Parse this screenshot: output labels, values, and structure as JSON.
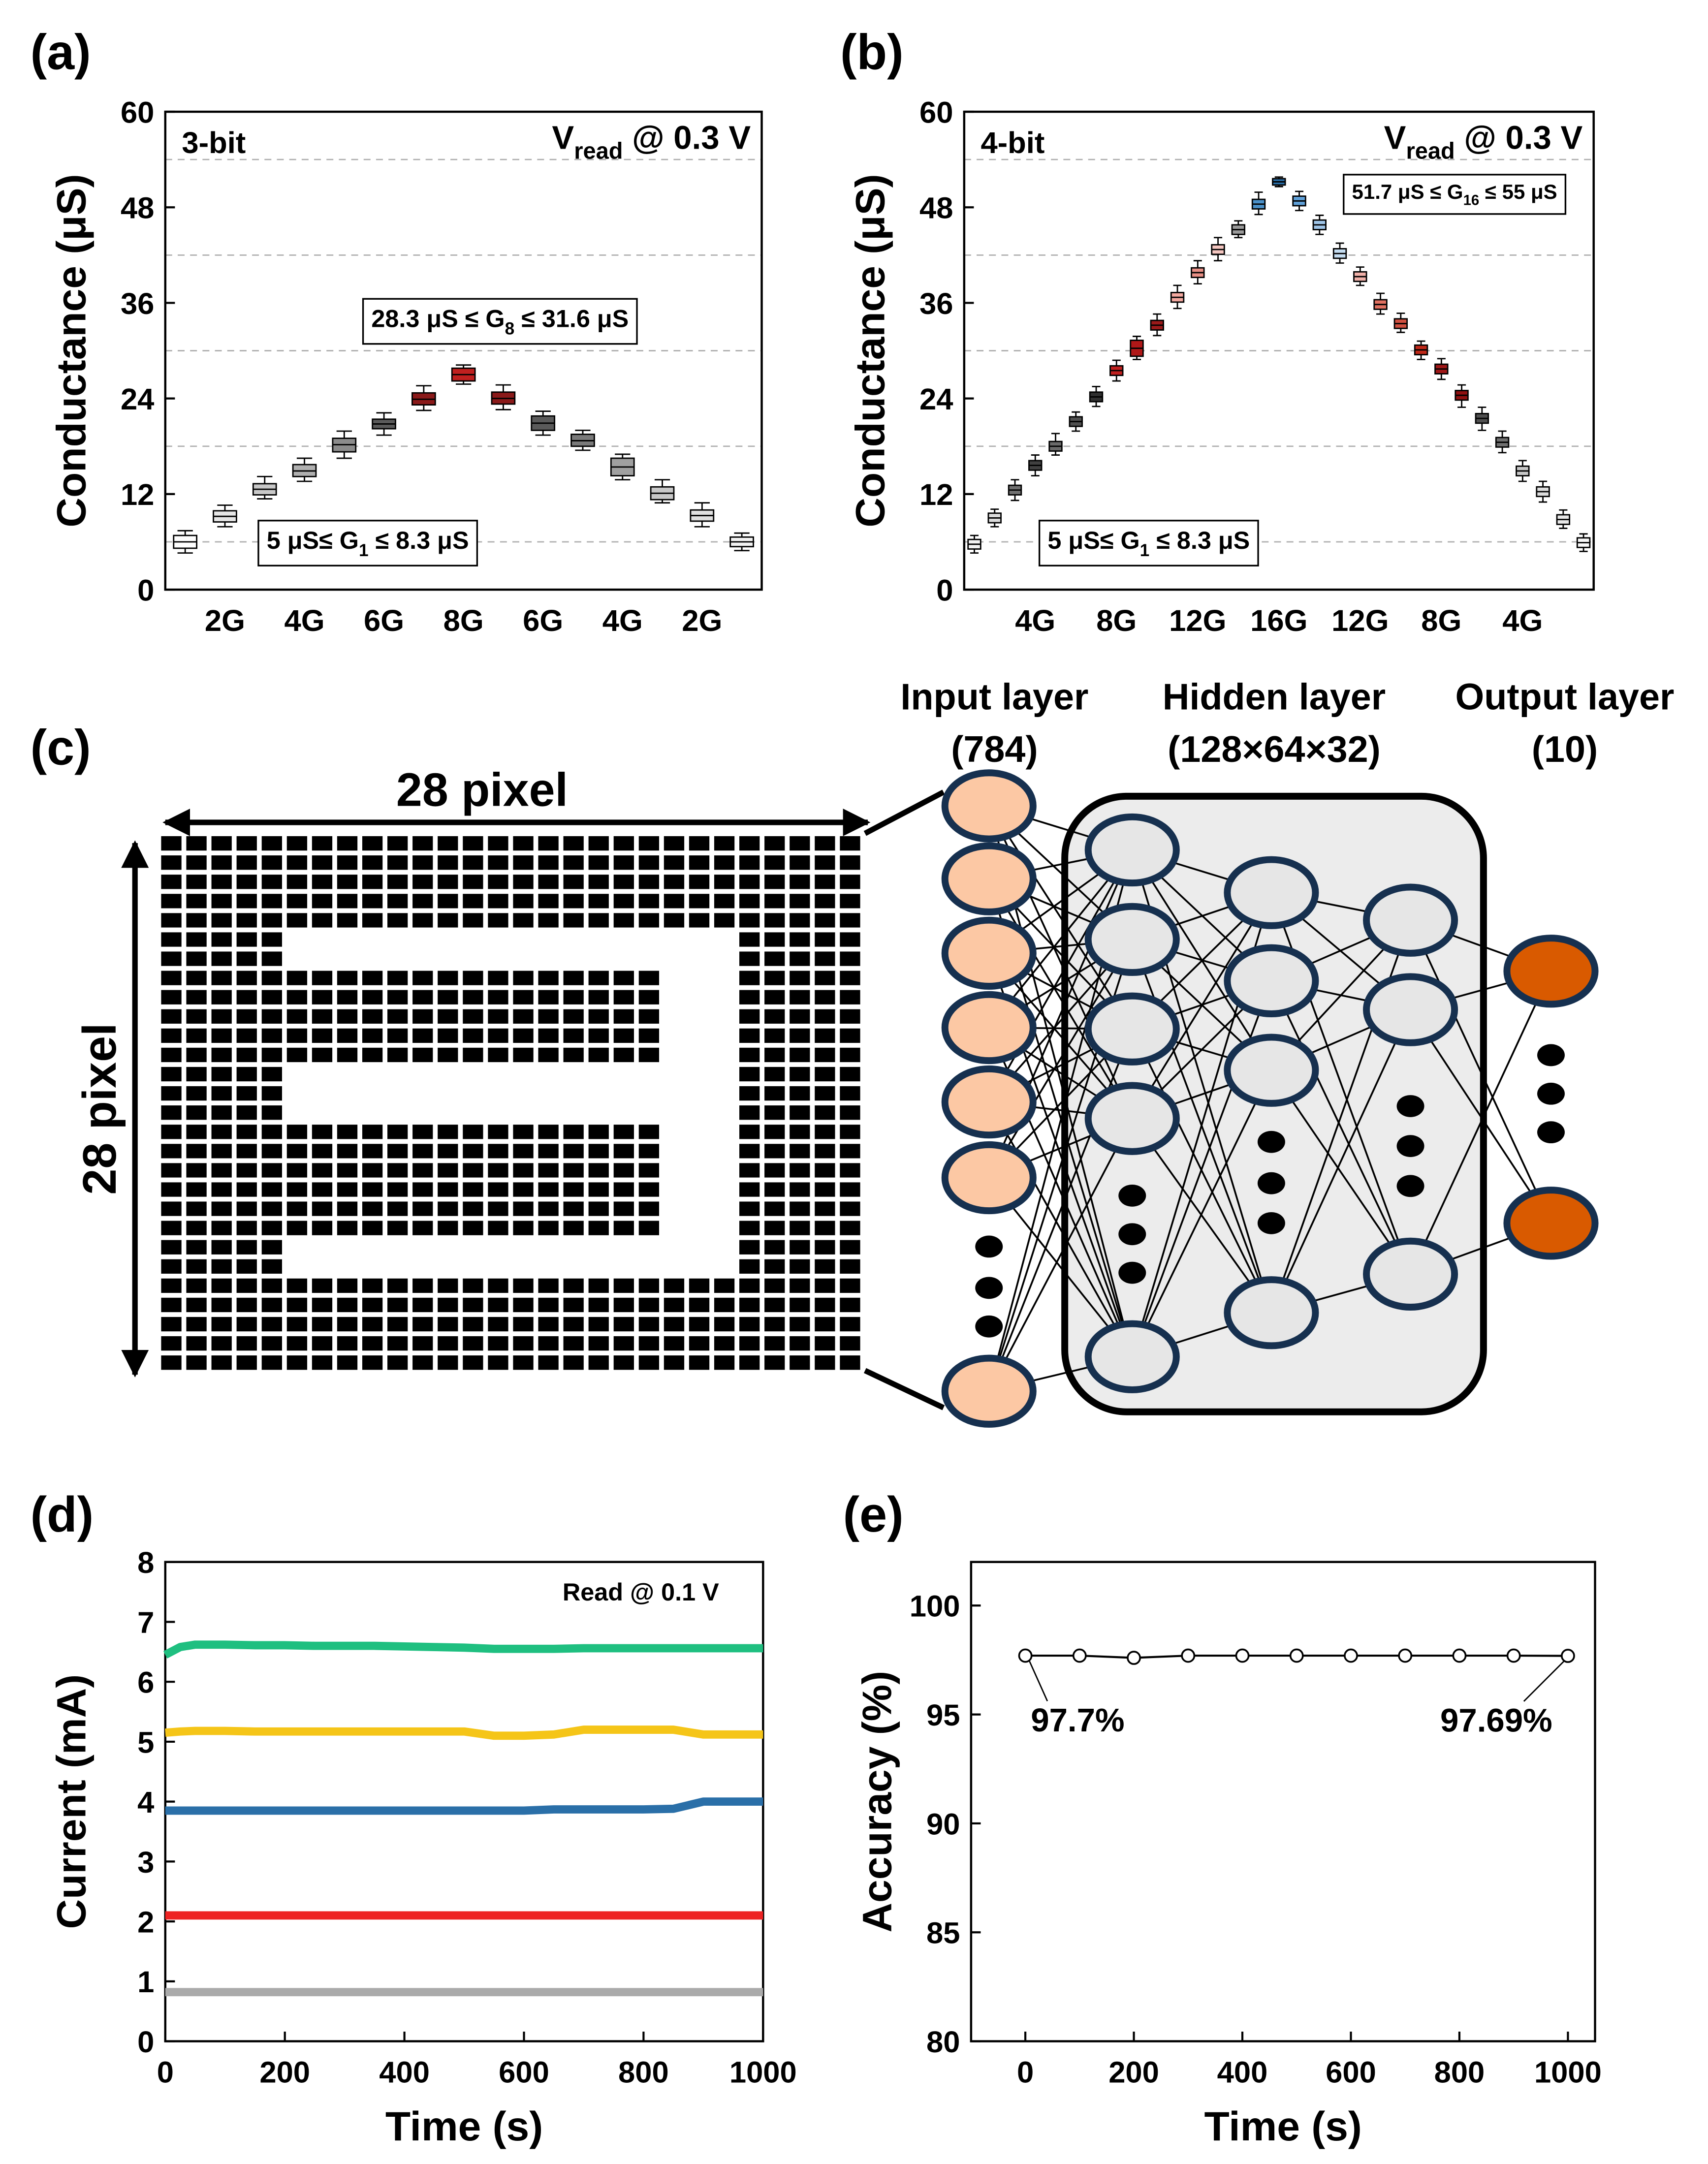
{
  "chart_data": [
    {
      "panel_label": "(a)",
      "type": "box",
      "ylabel": "Conductance (μS)",
      "bit_label": "3-bit",
      "vread": [
        "V",
        "read",
        " @ 0.3 V"
      ],
      "range_high": [
        "28.3 μS ≤ G",
        "8",
        " ≤ 31.6 μS"
      ],
      "range_low": [
        "5 μS≤ G",
        "1",
        " ≤ 8.3 μS"
      ],
      "categories": [
        null,
        "2G",
        null,
        "4G",
        null,
        "6G",
        null,
        "8G",
        null,
        "6G",
        null,
        "4G",
        null,
        "2G",
        null
      ],
      "median": [
        6.0,
        9.2,
        12.6,
        14.9,
        18.2,
        20.8,
        23.9,
        27.0,
        24.0,
        20.9,
        18.7,
        15.4,
        12.1,
        9.3,
        6.0
      ],
      "q1": [
        5.2,
        8.5,
        11.9,
        14.2,
        17.3,
        20.2,
        23.2,
        26.2,
        23.3,
        20.0,
        18.0,
        14.3,
        11.3,
        8.6,
        5.4
      ],
      "q3": [
        6.8,
        9.9,
        13.3,
        15.7,
        19.0,
        21.4,
        24.7,
        27.8,
        24.8,
        21.8,
        19.5,
        16.5,
        12.9,
        10.0,
        6.6
      ],
      "min": [
        4.6,
        7.9,
        11.4,
        13.6,
        16.5,
        19.4,
        22.5,
        25.8,
        22.6,
        19.4,
        17.5,
        13.8,
        10.9,
        7.9,
        4.9
      ],
      "max": [
        7.4,
        10.6,
        14.2,
        16.5,
        19.9,
        22.2,
        25.6,
        28.2,
        25.7,
        22.4,
        20.0,
        17.0,
        13.8,
        10.9,
        7.1
      ],
      "colors": [
        "#ffffff",
        "#e6e6e6",
        "#c8c8c8",
        "#b0b0b0",
        "#8c8c8c",
        "#5a5a5a",
        "#8b1a1a",
        "#c0201f",
        "#8b1a1a",
        "#5a5a5a",
        "#7a7a7a",
        "#a0a0a0",
        "#c8c8c8",
        "#e0e0e0",
        "#f2f2f2"
      ],
      "ylim": [
        0,
        60
      ],
      "yticks": [
        0,
        12,
        24,
        36,
        48,
        60
      ],
      "minor_yticks": [
        6,
        18,
        30,
        42,
        54
      ],
      "grid": true
    },
    {
      "panel_label": "(b)",
      "type": "box",
      "ylabel": "Conductance (μS)",
      "bit_label": "4-bit",
      "vread": [
        "V",
        "read",
        " @ 0.3 V"
      ],
      "range_high": [
        "51.7 μS ≤ G",
        "16",
        " ≤ 55 μS"
      ],
      "range_low": [
        "5 μS≤ G",
        "1",
        " ≤ 8.3 μS"
      ],
      "categories": [
        null,
        null,
        null,
        "4G",
        null,
        null,
        null,
        "8G",
        null,
        null,
        null,
        "12G",
        null,
        null,
        null,
        "16G",
        null,
        null,
        null,
        "12G",
        null,
        null,
        null,
        "8G",
        null,
        null,
        null,
        "4G",
        null,
        null,
        null
      ],
      "median": [
        5.7,
        9.0,
        12.5,
        15.6,
        18.0,
        21.1,
        24.2,
        27.5,
        30.3,
        33.2,
        36.7,
        39.8,
        42.7,
        45.2,
        48.4,
        51.2,
        48.8,
        45.8,
        42.2,
        39.3,
        35.8,
        33.4,
        30.1,
        27.7,
        24.4,
        21.5,
        18.5,
        14.9,
        12.3,
        8.8,
        5.9
      ],
      "q1": [
        5.1,
        8.4,
        11.9,
        15.0,
        17.4,
        20.5,
        23.6,
        26.9,
        29.3,
        32.6,
        36.1,
        39.2,
        42.1,
        44.6,
        47.8,
        50.8,
        48.2,
        45.2,
        41.6,
        38.7,
        35.2,
        32.8,
        29.5,
        27.1,
        23.8,
        20.9,
        17.9,
        14.3,
        11.7,
        8.2,
        5.3
      ],
      "q3": [
        6.3,
        9.6,
        13.1,
        16.2,
        18.6,
        21.7,
        24.8,
        28.1,
        31.3,
        33.8,
        37.3,
        40.4,
        43.3,
        45.8,
        49.0,
        51.6,
        49.4,
        46.4,
        42.8,
        39.9,
        36.4,
        34.0,
        30.7,
        28.3,
        25.0,
        22.1,
        19.1,
        15.5,
        12.9,
        9.4,
        6.5
      ],
      "min": [
        4.6,
        7.9,
        11.2,
        14.3,
        16.9,
        19.9,
        23.0,
        26.2,
        28.9,
        31.9,
        35.3,
        38.4,
        41.3,
        44.2,
        47.1,
        50.6,
        47.6,
        44.6,
        41.0,
        38.2,
        34.6,
        32.3,
        28.9,
        26.4,
        22.9,
        20.0,
        17.2,
        13.6,
        11.0,
        7.7,
        4.8
      ],
      "max": [
        6.8,
        10.1,
        13.8,
        16.9,
        19.6,
        22.3,
        25.5,
        28.8,
        31.8,
        34.6,
        38.2,
        41.3,
        44.2,
        46.3,
        49.9,
        51.8,
        50.0,
        47.0,
        43.5,
        40.5,
        37.2,
        34.7,
        31.2,
        29.0,
        25.7,
        22.9,
        19.9,
        16.2,
        13.6,
        10.0,
        7.0
      ],
      "colors": [
        "#f2f2f2",
        "#dcdcdc",
        "#707070",
        "#404040",
        "#6a6a6a",
        "#505050",
        "#303030",
        "#c0201f",
        "#b01818",
        "#9a1a1a",
        "#f4a9a0",
        "#e88f85",
        "#f4c6c0",
        "#9a9a9a",
        "#4a90c8",
        "#2a6fa8",
        "#5fa0d8",
        "#9fc5e8",
        "#c4dcf0",
        "#f0b0a8",
        "#e07060",
        "#d05040",
        "#c02818",
        "#a01818",
        "#901010",
        "#505050",
        "#707070",
        "#c8c8c8",
        "#dcdcdc",
        "#e8e8e8",
        "#f8f8f8"
      ],
      "ylim": [
        0,
        60
      ],
      "yticks": [
        0,
        12,
        24,
        36,
        48,
        60
      ],
      "minor_yticks": [
        6,
        18,
        30,
        42,
        54
      ],
      "grid": true
    },
    {
      "panel_label": "(d)",
      "type": "line",
      "xlabel": "Time (s)",
      "ylabel": "Current (mA)",
      "annotation": "Read @ 0.1 V",
      "x": [
        0,
        25,
        50,
        100,
        150,
        200,
        250,
        300,
        350,
        400,
        450,
        500,
        550,
        600,
        650,
        700,
        750,
        800,
        850,
        900,
        950,
        1000
      ],
      "series": [
        {
          "color": "#1fbf80",
          "values": [
            6.45,
            6.58,
            6.62,
            6.62,
            6.61,
            6.61,
            6.6,
            6.6,
            6.6,
            6.59,
            6.58,
            6.57,
            6.55,
            6.55,
            6.55,
            6.56,
            6.56,
            6.56,
            6.56,
            6.56,
            6.56,
            6.56
          ]
        },
        {
          "color": "#f5c518",
          "values": [
            5.15,
            5.17,
            5.18,
            5.18,
            5.17,
            5.17,
            5.17,
            5.17,
            5.17,
            5.17,
            5.17,
            5.17,
            5.1,
            5.1,
            5.12,
            5.2,
            5.2,
            5.2,
            5.2,
            5.12,
            5.12,
            5.12
          ]
        },
        {
          "color": "#2a6fa8",
          "values": [
            3.85,
            3.85,
            3.85,
            3.85,
            3.85,
            3.85,
            3.85,
            3.85,
            3.85,
            3.85,
            3.85,
            3.85,
            3.85,
            3.85,
            3.87,
            3.87,
            3.87,
            3.87,
            3.88,
            4.0,
            4.0,
            4.0
          ]
        },
        {
          "color": "#ee2222",
          "values": [
            2.1,
            2.1,
            2.1,
            2.1,
            2.1,
            2.1,
            2.1,
            2.1,
            2.1,
            2.1,
            2.1,
            2.1,
            2.1,
            2.1,
            2.1,
            2.1,
            2.1,
            2.1,
            2.1,
            2.1,
            2.1,
            2.1
          ]
        },
        {
          "color": "#aaaaaa",
          "values": [
            0.82,
            0.82,
            0.82,
            0.82,
            0.82,
            0.82,
            0.82,
            0.82,
            0.82,
            0.82,
            0.82,
            0.82,
            0.82,
            0.82,
            0.82,
            0.82,
            0.82,
            0.82,
            0.82,
            0.82,
            0.82,
            0.82
          ]
        }
      ],
      "xlim": [
        0,
        1000
      ],
      "xticks": [
        0,
        200,
        400,
        600,
        800,
        1000
      ],
      "ylim": [
        0,
        8
      ],
      "yticks": [
        0,
        1,
        2,
        3,
        4,
        5,
        6,
        7,
        8
      ]
    },
    {
      "panel_label": "(e)",
      "type": "line_marker",
      "xlabel": "Time (s)",
      "ylabel": "Accuracy (%)",
      "x": [
        0,
        100,
        200,
        300,
        400,
        500,
        600,
        700,
        800,
        900,
        1000
      ],
      "values": [
        97.7,
        97.7,
        97.6,
        97.7,
        97.7,
        97.7,
        97.7,
        97.7,
        97.7,
        97.7,
        97.69
      ],
      "value_labels": [
        "97.7%",
        null,
        null,
        null,
        null,
        null,
        null,
        null,
        null,
        null,
        "97.69%"
      ],
      "color": "#000000",
      "xlim": [
        -100,
        1050
      ],
      "xticks": [
        0,
        200,
        400,
        600,
        800,
        1000
      ],
      "ylim": [
        80,
        102
      ],
      "yticks": [
        80,
        85,
        90,
        95,
        100
      ]
    }
  ],
  "diagram": {
    "panel_label": "(c)",
    "pixel_width_label": "28 pixel",
    "pixel_height_label": "28 pixel",
    "layers": [
      {
        "title": "Input layer",
        "size": "(784)"
      },
      {
        "title": "Hidden layer",
        "size": "(128×64×32)"
      },
      {
        "title": "Output layer",
        "size": "(10)"
      }
    ]
  }
}
